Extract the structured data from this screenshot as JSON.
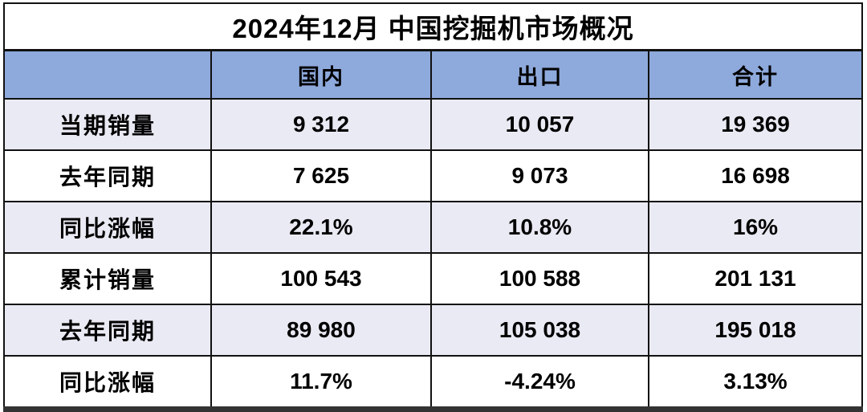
{
  "chart_data": {
    "type": "table",
    "title": "2024年12月 中国挖掘机市场概况",
    "columns": [
      "",
      "国内",
      "出口",
      "合计"
    ],
    "rows": [
      {
        "label": "当期销量",
        "values": [
          "9 312",
          "10 057",
          "19 369"
        ]
      },
      {
        "label": "去年同期",
        "values": [
          "7 625",
          "9 073",
          "16 698"
        ]
      },
      {
        "label": "同比涨幅",
        "values": [
          "22.1%",
          "10.8%",
          "16%"
        ]
      },
      {
        "label": "累计销量",
        "values": [
          "100 543",
          "100 588",
          "201 131"
        ]
      },
      {
        "label": "去年同期",
        "values": [
          "89 980",
          "105 038",
          "195 018"
        ]
      },
      {
        "label": "同比涨幅",
        "values": [
          "11.7%",
          "-4.24%",
          "3.13%"
        ]
      }
    ],
    "layout": {
      "banded_rows": true,
      "banded_row_indexes": [
        0,
        2,
        4
      ],
      "legend": "none",
      "grid": "on"
    },
    "colors": {
      "header_bg": "#8EA9DB",
      "band_bg": "#E9EAF3",
      "title_bg": "#FFFFFF",
      "grid": "#111111",
      "bottom_bar": "#333333",
      "text": "#000000"
    }
  }
}
